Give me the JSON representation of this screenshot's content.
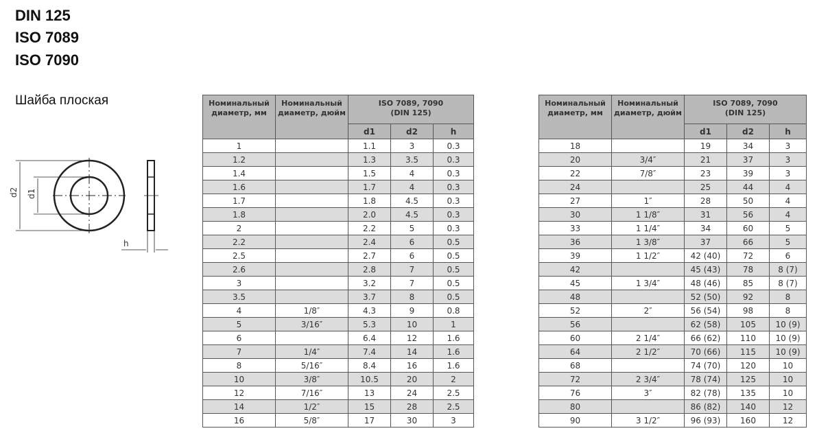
{
  "titles": [
    "DIN 125",
    "ISO 7089",
    "ISO 7090"
  ],
  "subtitle": "Шайба плоская",
  "drawing": {
    "labels": {
      "d2": "d2",
      "d1": "d1",
      "h": "h"
    }
  },
  "headers": {
    "mm": "Номинальный диаметр, мм",
    "inch": "Номинальный диаметр, дюйм",
    "standard": "ISO 7089, 7090",
    "standard2": "(DIN 125)",
    "d1": "d1",
    "d2": "d2",
    "h": "h"
  },
  "tables": [
    [
      [
        "1",
        "",
        "1.1",
        "3",
        "0.3"
      ],
      [
        "1.2",
        "",
        "1.3",
        "3.5",
        "0.3"
      ],
      [
        "1.4",
        "",
        "1.5",
        "4",
        "0.3"
      ],
      [
        "1.6",
        "",
        "1.7",
        "4",
        "0.3"
      ],
      [
        "1.7",
        "",
        "1.8",
        "4.5",
        "0.3"
      ],
      [
        "1.8",
        "",
        "2.0",
        "4.5",
        "0.3"
      ],
      [
        "2",
        "",
        "2.2",
        "5",
        "0.3"
      ],
      [
        "2.2",
        "",
        "2.4",
        "6",
        "0.5"
      ],
      [
        "2.5",
        "",
        "2.7",
        "6",
        "0.5"
      ],
      [
        "2.6",
        "",
        "2.8",
        "7",
        "0.5"
      ],
      [
        "3",
        "",
        "3.2",
        "7",
        "0.5"
      ],
      [
        "3.5",
        "",
        "3.7",
        "8",
        "0.5"
      ],
      [
        "4",
        "1/8″",
        "4.3",
        "9",
        "0.8"
      ],
      [
        "5",
        "3/16″",
        "5.3",
        "10",
        "1"
      ],
      [
        "6",
        "",
        "6.4",
        "12",
        "1.6"
      ],
      [
        "7",
        "1/4″",
        "7.4",
        "14",
        "1.6"
      ],
      [
        "8",
        "5/16″",
        "8.4",
        "16",
        "1.6"
      ],
      [
        "10",
        "3/8″",
        "10.5",
        "20",
        "2"
      ],
      [
        "12",
        "7/16″",
        "13",
        "24",
        "2.5"
      ],
      [
        "14",
        "1/2″",
        "15",
        "28",
        "2.5"
      ],
      [
        "16",
        "5/8″",
        "17",
        "30",
        "3"
      ]
    ],
    [
      [
        "18",
        "",
        "19",
        "34",
        "3"
      ],
      [
        "20",
        "3/4″",
        "21",
        "37",
        "3"
      ],
      [
        "22",
        "7/8″",
        "23",
        "39",
        "3"
      ],
      [
        "24",
        "",
        "25",
        "44",
        "4"
      ],
      [
        "27",
        "1″",
        "28",
        "50",
        "4"
      ],
      [
        "30",
        "1 1/8″",
        "31",
        "56",
        "4"
      ],
      [
        "33",
        "1 1/4″",
        "34",
        "60",
        "5"
      ],
      [
        "36",
        "1 3/8″",
        "37",
        "66",
        "5"
      ],
      [
        "39",
        "1 1/2″",
        "42 (40)",
        "72",
        "6"
      ],
      [
        "42",
        "",
        "45 (43)",
        "78",
        "8 (7)"
      ],
      [
        "45",
        "1 3/4″",
        "48 (46)",
        "85",
        "8 (7)"
      ],
      [
        "48",
        "",
        "52 (50)",
        "92",
        "8"
      ],
      [
        "52",
        "2″",
        "56 (54)",
        "98",
        "8"
      ],
      [
        "56",
        "",
        "62 (58)",
        "105",
        "10 (9)"
      ],
      [
        "60",
        "2 1/4″",
        "66 (62)",
        "110",
        "10 (9)"
      ],
      [
        "64",
        "2 1/2″",
        "70 (66)",
        "115",
        "10 (9)"
      ],
      [
        "68",
        "",
        "74 (70)",
        "120",
        "10"
      ],
      [
        "72",
        "2 3/4″",
        "78 (74)",
        "125",
        "10"
      ],
      [
        "76",
        "3″",
        "82 (78)",
        "135",
        "10"
      ],
      [
        "80",
        "",
        "86 (82)",
        "140",
        "12"
      ],
      [
        "90",
        "3 1/2″",
        "96 (93)",
        "160",
        "12"
      ]
    ]
  ]
}
